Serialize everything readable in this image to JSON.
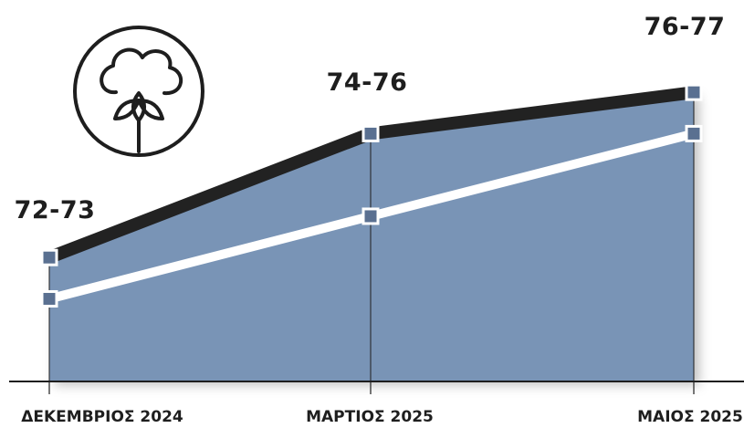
{
  "chart_data": {
    "type": "area",
    "categories": [
      "ΔΕΚΕΜΒΡΙΟΣ 2024",
      "ΜΑΡΤΙΟΣ 2025",
      "ΜΑΙΟΣ 2025"
    ],
    "series": [
      {
        "key": "upper",
        "values": [
          73,
          76,
          77
        ]
      },
      {
        "key": "lower",
        "values": [
          72,
          74,
          76
        ]
      }
    ],
    "range_labels": [
      "72-73",
      "74-76",
      "76-77"
    ],
    "ylim": [
      70,
      77.6
    ],
    "grid": false,
    "legend": "none"
  },
  "icon": {
    "name": "cotton-plant-icon"
  },
  "colors": {
    "area": "#7994b6",
    "upper_line": "#222222",
    "lower_line": "#ffffff",
    "marker": "#5a7091",
    "marker_border": "#ffffff",
    "axis": "#1e1e1e",
    "text": "#1e1e1e"
  }
}
